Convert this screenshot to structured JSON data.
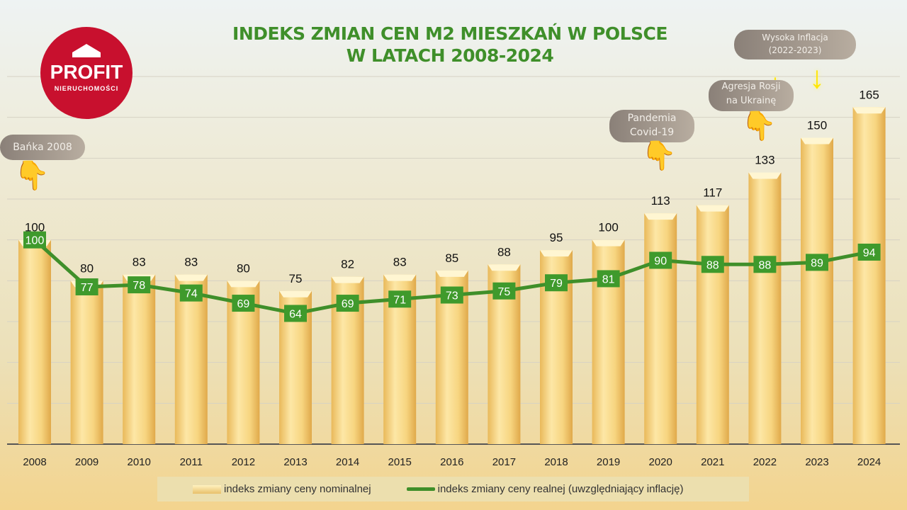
{
  "chart_data": {
    "type": "bar",
    "title": "INDEKS ZMIAN CEN M2 MIESZKAŃ W POLSCE W LATACH 2008-2024",
    "title_lines": [
      "INDEKS ZMIAN CEN M2 MIESZKAŃ W POLSCE",
      "W LATACH 2008-2024"
    ],
    "categories": [
      "2008",
      "2009",
      "2010",
      "2011",
      "2012",
      "2013",
      "2014",
      "2015",
      "2016",
      "2017",
      "2018",
      "2019",
      "2020",
      "2021",
      "2022",
      "2023",
      "2024"
    ],
    "series": [
      {
        "name": "indeks zmiany ceny nominalnej",
        "type": "bar",
        "values": [
          100,
          80,
          83,
          83,
          80,
          75,
          82,
          83,
          85,
          88,
          95,
          100,
          113,
          117,
          133,
          150,
          165
        ],
        "color": "#f0cf7c"
      },
      {
        "name": "indeks zmiany ceny realnej (uwzględniający inflację)",
        "type": "line",
        "values": [
          100,
          77,
          78,
          74,
          69,
          64,
          69,
          71,
          73,
          75,
          79,
          81,
          90,
          88,
          88,
          89,
          94
        ],
        "color": "#3f8f2a"
      }
    ],
    "ylim": [
      0,
      180
    ],
    "grid": true,
    "y_tick_labels_shown": false,
    "legend": "bottom",
    "annotations": [
      {
        "text": "Bańka 2008",
        "year": "2008",
        "icon": "pointing-hand-icon"
      },
      {
        "text": "Pandemia Covid-19",
        "lines": [
          "Pandemia",
          "Covid-19"
        ],
        "year": "2020",
        "icon": "pointing-hand-icon"
      },
      {
        "text": "Agresja Rosji na Ukrainę",
        "lines": [
          "Agresja Rosji",
          "na Ukrainę"
        ],
        "year": "2022",
        "icon": "pointing-hand-icon"
      },
      {
        "text": "Wysoka Inflacja (2022-2023)",
        "lines": [
          "Wysoka Inflacja",
          "(2022-2023)"
        ],
        "years": [
          "2022",
          "2023"
        ],
        "icon": "arrow-down-icon"
      }
    ]
  },
  "logo": {
    "brand": "PROFIT",
    "subtitle": "NIERUCHOMOŚCI",
    "color": "#c8102e"
  }
}
